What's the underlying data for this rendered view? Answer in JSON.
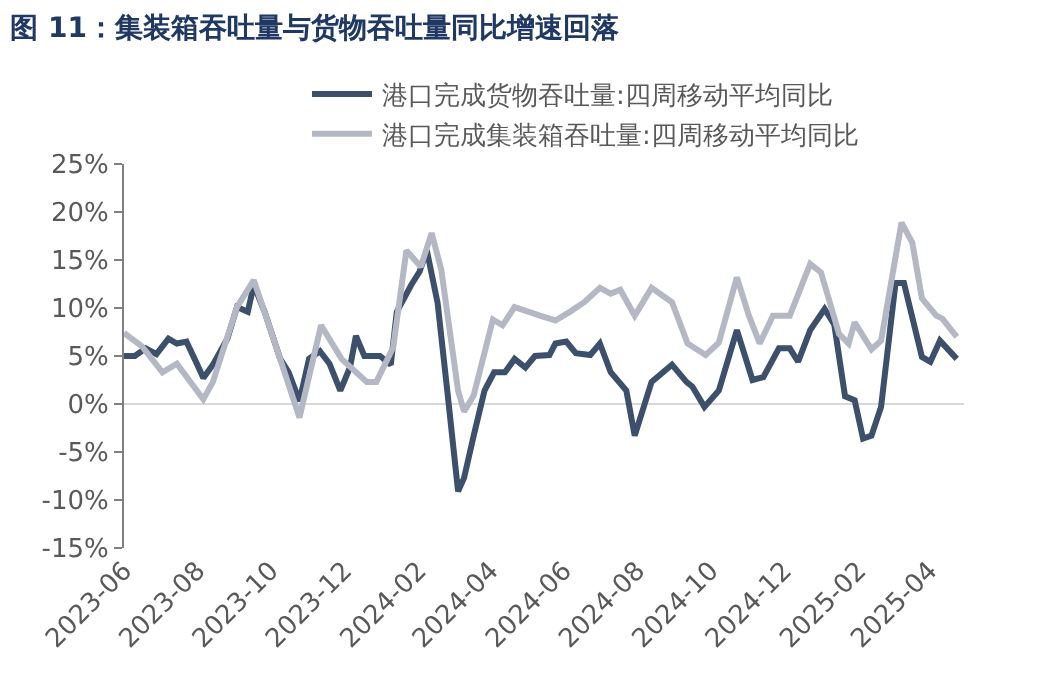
{
  "chart_data": {
    "type": "line",
    "title": "图 11：集装箱吞吐量与货物吞吐量同比增速回落",
    "series": [
      {
        "name": "港口完成货物吞吐量:四周移动平均同比",
        "color": "#3c4f6b",
        "x": [
          "2023-06-01",
          "2023-06-10",
          "2023-06-19",
          "2023-06-28",
          "2023-07-08",
          "2023-07-15",
          "2023-07-23",
          "2023-08-01",
          "2023-08-06",
          "2023-08-14",
          "2023-08-26",
          "2023-09-03",
          "2023-09-12",
          "2023-09-17",
          "2023-09-26",
          "2023-10-09",
          "2023-10-16",
          "2023-10-25",
          "2023-11-02",
          "2023-11-11",
          "2023-11-19",
          "2023-11-28",
          "2023-12-06",
          "2023-12-11",
          "2023-12-18",
          "2023-12-31",
          "2024-01-09",
          "2024-01-14",
          "2024-01-26",
          "2024-02-02",
          "2024-02-08",
          "2024-02-17",
          "2024-02-25",
          "2024-03-05",
          "2024-03-10",
          "2024-03-18",
          "2024-03-27",
          "2024-04-04",
          "2024-04-13",
          "2024-04-21",
          "2024-04-30",
          "2024-05-08",
          "2024-05-20",
          "2024-05-25",
          "2024-06-03",
          "2024-06-11",
          "2024-06-23",
          "2024-07-01",
          "2024-07-10",
          "2024-07-23",
          "2024-07-30",
          "2024-08-13",
          "2024-08-30",
          "2024-09-11",
          "2024-09-16",
          "2024-09-26",
          "2024-10-08",
          "2024-10-23",
          "2024-11-05",
          "2024-11-14",
          "2024-11-27",
          "2024-12-06",
          "2024-12-13",
          "2024-12-23",
          "2025-01-04",
          "2025-01-12",
          "2025-01-21",
          "2025-01-29",
          "2025-02-05",
          "2025-02-12",
          "2025-02-20",
          "2025-03-04",
          "2025-03-11",
          "2025-03-26",
          "2025-04-02",
          "2025-04-10",
          "2025-04-24"
        ],
        "values": [
          5.0,
          5.0,
          5.8,
          5.2,
          6.8,
          6.3,
          6.5,
          4.1,
          2.7,
          4.1,
          6.8,
          10.1,
          9.6,
          12.4,
          9.6,
          4.7,
          3.3,
          0.3,
          4.7,
          5.5,
          4.2,
          1.4,
          3.8,
          7.1,
          5.0,
          5.0,
          4.1,
          9.6,
          12.4,
          13.8,
          16.0,
          10.5,
          1.4,
          -9.1,
          -7.7,
          -3.3,
          1.4,
          3.3,
          3.3,
          4.7,
          3.8,
          5.0,
          5.1,
          6.3,
          6.5,
          5.3,
          5.1,
          6.3,
          3.3,
          1.4,
          -3.3,
          2.3,
          4.1,
          2.3,
          1.8,
          -0.3,
          1.4,
          7.7,
          2.5,
          2.8,
          5.8,
          5.8,
          4.4,
          7.7,
          9.9,
          8.3,
          0.8,
          0.4,
          -3.6,
          -3.3,
          -0.3,
          12.6,
          12.6,
          4.9,
          4.4,
          6.6,
          4.7
        ]
      },
      {
        "name": "港口完成集装箱吞吐量:四周移动平均同比",
        "color": "#b4b8c4",
        "x": [
          "2023-06-01",
          "2023-06-16",
          "2023-07-03",
          "2023-07-15",
          "2023-08-06",
          "2023-08-14",
          "2023-09-03",
          "2023-09-17",
          "2023-10-01",
          "2023-10-25",
          "2023-11-12",
          "2023-11-29",
          "2023-12-20",
          "2023-12-28",
          "2024-01-11",
          "2024-01-22",
          "2024-02-03",
          "2024-02-12",
          "2024-02-20",
          "2024-03-05",
          "2024-03-10",
          "2024-03-18",
          "2024-04-03",
          "2024-04-11",
          "2024-04-21",
          "2024-05-03",
          "2024-05-12",
          "2024-05-25",
          "2024-06-06",
          "2024-06-18",
          "2024-07-01",
          "2024-07-10",
          "2024-07-18",
          "2024-07-30",
          "2024-08-13",
          "2024-08-30",
          "2024-09-12",
          "2024-09-27",
          "2024-10-08",
          "2024-10-23",
          "2024-11-02",
          "2024-11-11",
          "2024-11-22",
          "2024-12-06",
          "2024-12-23",
          "2025-01-01",
          "2025-01-16",
          "2025-01-24",
          "2025-01-29",
          "2025-02-12",
          "2025-02-20",
          "2025-03-09",
          "2025-03-18",
          "2025-03-26",
          "2025-04-07",
          "2025-04-12",
          "2025-04-24"
        ],
        "values": [
          7.4,
          6.0,
          3.3,
          4.2,
          0.5,
          2.3,
          10.1,
          12.9,
          7.7,
          -1.4,
          8.2,
          4.7,
          2.3,
          2.3,
          5.9,
          16.0,
          14.3,
          17.8,
          14.0,
          1.4,
          -0.8,
          0.9,
          8.8,
          8.2,
          10.1,
          9.6,
          9.2,
          8.7,
          9.6,
          10.6,
          12.1,
          11.5,
          11.9,
          9.2,
          12.1,
          10.6,
          6.3,
          5.1,
          6.4,
          13.2,
          9.2,
          6.3,
          9.2,
          9.2,
          14.6,
          13.7,
          7.3,
          6.3,
          8.5,
          5.7,
          6.6,
          18.9,
          16.8,
          11.0,
          9.2,
          8.9,
          7.0
        ]
      }
    ],
    "xlim": [
      "2023-06-01",
      "2025-04-30"
    ],
    "xticks": [
      {
        "value": "2023-06-01",
        "label": "2023-06"
      },
      {
        "value": "2023-08-01",
        "label": "2023-08"
      },
      {
        "value": "2023-10-01",
        "label": "2023-10"
      },
      {
        "value": "2023-12-01",
        "label": "2023-12"
      },
      {
        "value": "2024-02-01",
        "label": "2024-02"
      },
      {
        "value": "2024-04-01",
        "label": "2024-04"
      },
      {
        "value": "2024-06-01",
        "label": "2024-06"
      },
      {
        "value": "2024-08-01",
        "label": "2024-08"
      },
      {
        "value": "2024-10-01",
        "label": "2024-10"
      },
      {
        "value": "2024-12-01",
        "label": "2024-12"
      },
      {
        "value": "2025-02-01",
        "label": "2025-02"
      },
      {
        "value": "2025-04-01",
        "label": "2025-04"
      }
    ],
    "ylim": [
      -15,
      25
    ],
    "yticks": [
      {
        "value": -15,
        "label": "-15%"
      },
      {
        "value": -10,
        "label": "-10%"
      },
      {
        "value": -5,
        "label": "-5%"
      },
      {
        "value": 0,
        "label": "0%"
      },
      {
        "value": 5,
        "label": "5%"
      },
      {
        "value": 10,
        "label": "10%"
      },
      {
        "value": 15,
        "label": "15%"
      },
      {
        "value": 20,
        "label": "20%"
      },
      {
        "value": 25,
        "label": "25%"
      }
    ],
    "ref_lines": [
      {
        "axis": "y",
        "value": 0,
        "color": "#d9d9d9"
      }
    ],
    "grid": false,
    "legend": "top",
    "marker": "none",
    "line_style": "solid"
  }
}
